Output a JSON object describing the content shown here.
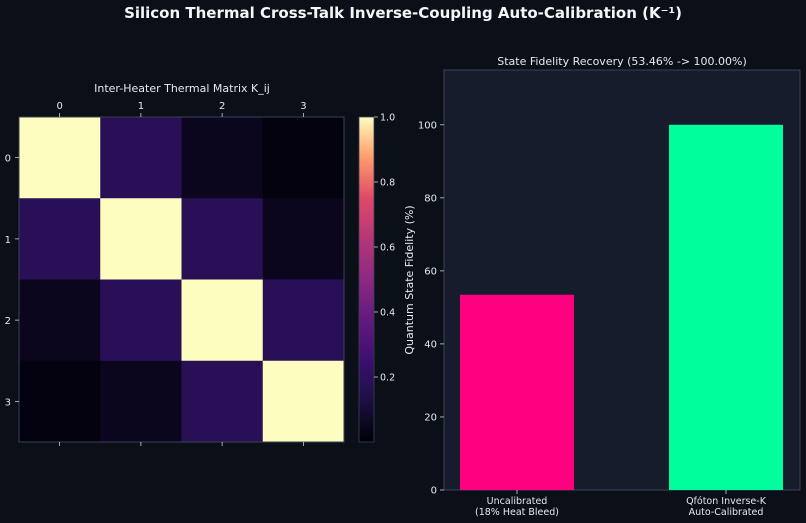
{
  "suptitle": "Silicon Thermal Cross-Talk Inverse-Coupling Auto-Calibration (K⁻¹)",
  "colors": {
    "background": "#0b0f17",
    "axes_bg": "#161c2b",
    "bar_uncalibrated": "#ff0080",
    "bar_calibrated": "#00ff9c"
  },
  "chart_data": [
    {
      "type": "heatmap",
      "title": "Inter-Heater Thermal Matrix K_ij",
      "x_tick_labels": [
        "0",
        "1",
        "2",
        "3"
      ],
      "y_tick_labels": [
        "0",
        "1",
        "2",
        "3"
      ],
      "matrix": [
        [
          1.0,
          0.18,
          0.05,
          0.02
        ],
        [
          0.18,
          1.0,
          0.18,
          0.05
        ],
        [
          0.05,
          0.18,
          1.0,
          0.18
        ],
        [
          0.02,
          0.05,
          0.18,
          1.0
        ]
      ],
      "colormap": "magma",
      "colorbar": {
        "range": [
          0,
          1.0
        ],
        "tick_labels": [
          "0.2",
          "0.4",
          "0.6",
          "0.8",
          "1.0"
        ],
        "tick_values": [
          0.2,
          0.4,
          0.6,
          0.8,
          1.0
        ]
      }
    },
    {
      "type": "bar",
      "title": "State Fidelity Recovery (53.46% -> 100.00%)",
      "categories": [
        "Uncalibrated\n(18% Heat Bleed)",
        "Qfóton Inverse-K\nAuto-Calibrated"
      ],
      "values": [
        53.46,
        100.0
      ],
      "ylabel": "Quantum State Fidelity (%)",
      "ylim": [
        0,
        115
      ],
      "y_ticks": [
        0,
        20,
        40,
        60,
        80,
        100
      ]
    }
  ]
}
